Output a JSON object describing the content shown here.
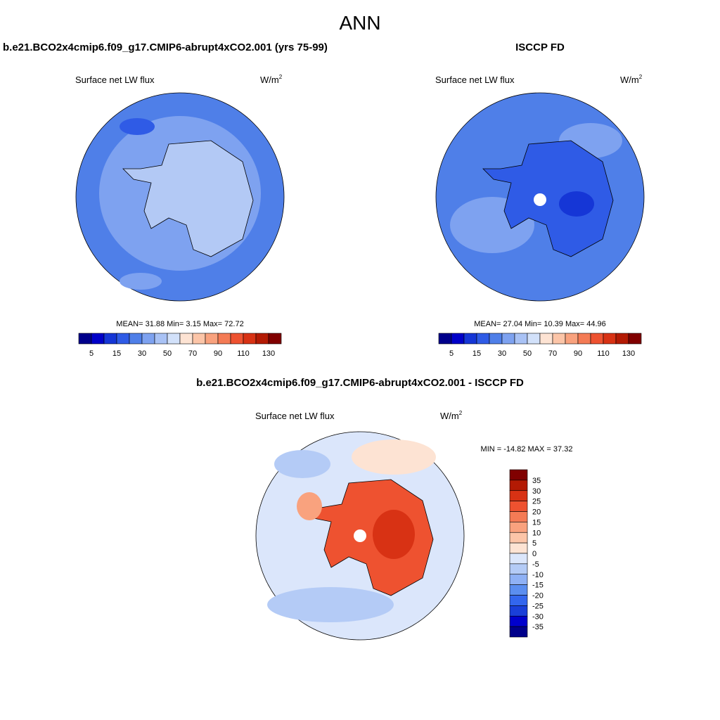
{
  "title": "ANN",
  "panels": [
    {
      "case": "b.e21.BCO2x4cmip6.f09_g17.CMIP6-abrupt4xCO2.001 (yrs 75-99)",
      "variable": "Surface net LW flux",
      "units": "W/m",
      "units_power": "2",
      "stats": {
        "mean_label": "MEAN=",
        "mean": 31.88,
        "min_label": "Min=",
        "min": 3.15,
        "max_label": "Max=",
        "max": 72.72
      },
      "colorbar": {
        "colors": [
          "#00008b",
          "#0000c8",
          "#1536d6",
          "#2f5be6",
          "#4f7fe8",
          "#7ea2f0",
          "#a9c2f5",
          "#d2e1fa",
          "#fde3d3",
          "#fcc5a8",
          "#f9a27e",
          "#f47b55",
          "#ee5230",
          "#d83214",
          "#b31a04",
          "#800000"
        ],
        "labels": [
          5,
          15,
          30,
          50,
          70,
          90,
          110,
          130
        ]
      }
    },
    {
      "case": "ISCCP FD",
      "variable": "Surface net LW flux",
      "units": "W/m",
      "units_power": "2",
      "stats": {
        "mean_label": "MEAN=",
        "mean": 27.04,
        "min_label": "Min=",
        "min": 10.39,
        "max_label": "Max=",
        "max": 44.96
      },
      "colorbar": {
        "colors": [
          "#00008b",
          "#0000c8",
          "#1536d6",
          "#2f5be6",
          "#4f7fe8",
          "#7ea2f0",
          "#a9c2f5",
          "#d2e1fa",
          "#fde3d3",
          "#fcc5a8",
          "#f9a27e",
          "#f47b55",
          "#ee5230",
          "#d83214",
          "#b31a04",
          "#800000"
        ],
        "labels": [
          5,
          15,
          30,
          50,
          70,
          90,
          110,
          130
        ]
      }
    }
  ],
  "difference": {
    "title": "b.e21.BCO2x4cmip6.f09_g17.CMIP6-abrupt4xCO2.001 - ISCCP FD",
    "variable": "Surface net LW flux",
    "units": "W/m",
    "units_power": "2",
    "stats": {
      "min_label": "MIN =",
      "min": -14.82,
      "max_label": "MAX =",
      "max": 37.32
    },
    "colorbar": {
      "colors": [
        "#800000",
        "#b31a04",
        "#d83214",
        "#ee5230",
        "#f47b55",
        "#f9a27e",
        "#fcc5a8",
        "#fde3d3",
        "#dbe6fb",
        "#b4cbf6",
        "#8fb1f5",
        "#5b8ef0",
        "#3366ee",
        "#1a3fd9",
        "#0000cd",
        "#00008b"
      ],
      "labels": [
        35,
        30,
        25,
        20,
        15,
        10,
        5,
        0,
        -5,
        -10,
        -15,
        -20,
        -25,
        -30,
        -35
      ]
    }
  }
}
